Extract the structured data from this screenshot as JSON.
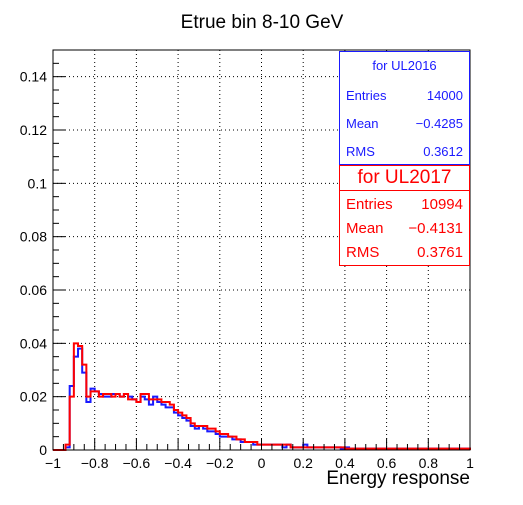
{
  "colors": {
    "series_a": "#1a1aff",
    "series_b": "#ff0000",
    "axis": "#000000",
    "grid": "#000000"
  },
  "chart_data": {
    "type": "histogram",
    "title": "Etrue bin 8-10 GeV",
    "xlabel": "Energy response",
    "ylabel": "",
    "xlim": [
      -1,
      1
    ],
    "ylim": [
      0,
      0.15
    ],
    "grid": true,
    "x_ticks": [
      "−1",
      "−0.8",
      "−0.6",
      "−0.4",
      "−0.2",
      "0",
      "0.2",
      "0.4",
      "0.6",
      "0.8",
      "1"
    ],
    "x_tick_values": [
      -1,
      -0.8,
      -0.6,
      -0.4,
      -0.2,
      0,
      0.2,
      0.4,
      0.6,
      0.8,
      1
    ],
    "y_ticks": [
      "0",
      "0.02",
      "0.04",
      "0.06",
      "0.08",
      "0.1",
      "0.12",
      "0.14"
    ],
    "y_tick_values": [
      0,
      0.02,
      0.04,
      0.06,
      0.08,
      0.1,
      0.12,
      0.14
    ],
    "bin_edges": [
      -1,
      -0.98,
      -0.96,
      -0.94,
      -0.92,
      -0.9,
      -0.88,
      -0.86,
      -0.84,
      -0.82,
      -0.8,
      -0.78,
      -0.76,
      -0.74,
      -0.72,
      -0.7,
      -0.68,
      -0.66,
      -0.64,
      -0.62,
      -0.6,
      -0.58,
      -0.56,
      -0.54,
      -0.52,
      -0.5,
      -0.48,
      -0.46,
      -0.44,
      -0.42,
      -0.4,
      -0.38,
      -0.36,
      -0.34,
      -0.32,
      -0.3,
      -0.28,
      -0.26,
      -0.24,
      -0.22,
      -0.2,
      -0.18,
      -0.16,
      -0.14,
      -0.12,
      -0.1,
      -0.08,
      -0.06,
      -0.04,
      -0.02,
      0,
      0.02,
      0.04,
      0.06,
      0.08,
      0.1,
      0.12,
      0.14,
      0.16,
      0.18,
      0.2,
      0.22,
      0.24,
      0.26,
      0.28,
      0.3,
      0.32,
      0.34,
      0.36,
      0.38,
      0.4,
      0.42,
      0.44,
      0.46,
      0.48,
      0.5,
      0.52,
      0.54,
      0.56,
      0.58,
      0.6,
      0.62,
      0.64,
      0.66,
      0.68,
      0.7,
      0.72,
      0.74,
      0.76,
      0.78,
      0.8,
      0.82,
      0.84,
      0.86,
      0.88,
      0.9,
      0.92,
      0.94,
      0.96,
      0.98,
      1
    ],
    "series": [
      {
        "name": "UL2016",
        "color": "#1a1aff",
        "values": [
          0,
          0,
          0,
          0.001,
          0.024,
          0.035,
          0.038,
          0.029,
          0.018,
          0.023,
          0.022,
          0.021,
          0.02,
          0.02,
          0.021,
          0.021,
          0.02,
          0.021,
          0.02,
          0.019,
          0.018,
          0.02,
          0.019,
          0.017,
          0.02,
          0.018,
          0.017,
          0.016,
          0.016,
          0.014,
          0.013,
          0.012,
          0.011,
          0.009,
          0.008,
          0.009,
          0.008,
          0.007,
          0.007,
          0.006,
          0.005,
          0.005,
          0.005,
          0.004,
          0.004,
          0.003,
          0.003,
          0.003,
          0.002,
          0.002,
          0.002,
          0.002,
          0.002,
          0.002,
          0.002,
          0.001,
          0.002,
          0.001,
          0.001,
          0.001,
          0.002,
          0.001,
          0.001,
          0.001,
          0.001,
          0.001,
          0.001,
          0.001,
          0.001,
          0.0005,
          0.001,
          0.0005,
          0.0005,
          0.0005,
          0.0005,
          0.0005,
          0.0005,
          0.0005,
          0.0005,
          0.0005,
          0.0005,
          0.0005,
          0.0005,
          0.0005,
          0.0005,
          0.0005,
          0.0005,
          0.0005,
          0.0005,
          0.0005,
          0.0005,
          0.0005,
          0.0005,
          0.0005,
          0.0005,
          0.0005,
          0.0005,
          0.0005,
          0.0005,
          0.0005
        ]
      },
      {
        "name": "UL2017",
        "color": "#ff0000",
        "values": [
          0,
          0,
          0,
          0.002,
          0.02,
          0.04,
          0.039,
          0.032,
          0.02,
          0.022,
          0.022,
          0.02,
          0.021,
          0.021,
          0.02,
          0.021,
          0.02,
          0.021,
          0.019,
          0.019,
          0.018,
          0.021,
          0.021,
          0.019,
          0.019,
          0.019,
          0.018,
          0.018,
          0.017,
          0.015,
          0.014,
          0.013,
          0.012,
          0.01,
          0.009,
          0.009,
          0.009,
          0.008,
          0.008,
          0.007,
          0.006,
          0.006,
          0.005,
          0.005,
          0.004,
          0.004,
          0.003,
          0.003,
          0.003,
          0.002,
          0.002,
          0.002,
          0.002,
          0.002,
          0.002,
          0.002,
          0.002,
          0.001,
          0.001,
          0.001,
          0.001,
          0.001,
          0.001,
          0.001,
          0.001,
          0.001,
          0.001,
          0.001,
          0.001,
          0.001,
          0.0005,
          0.0005,
          0.0005,
          0.0005,
          0.0005,
          0.0005,
          0.0005,
          0.0005,
          0.0005,
          0.0005,
          0.0005,
          0.0005,
          0.0005,
          0.0005,
          0.0005,
          0.0005,
          0.0005,
          0.0005,
          0.0005,
          0.0005,
          0.0005,
          0.0005,
          0.0005,
          0.0005,
          0.0005,
          0.0005,
          0.0005,
          0.0005,
          0.0005,
          0.0005
        ]
      }
    ]
  },
  "stats": [
    {
      "title": "for UL2016",
      "rows": [
        {
          "label": "Entries",
          "value": "14000"
        },
        {
          "label": "Mean",
          "value": "−0.4285"
        },
        {
          "label": "RMS",
          "value": "0.3612"
        }
      ]
    },
    {
      "title": "for UL2017",
      "rows": [
        {
          "label": "Entries",
          "value": "10994"
        },
        {
          "label": "Mean",
          "value": "−0.4131"
        },
        {
          "label": "RMS",
          "value": "0.3761"
        }
      ]
    }
  ]
}
